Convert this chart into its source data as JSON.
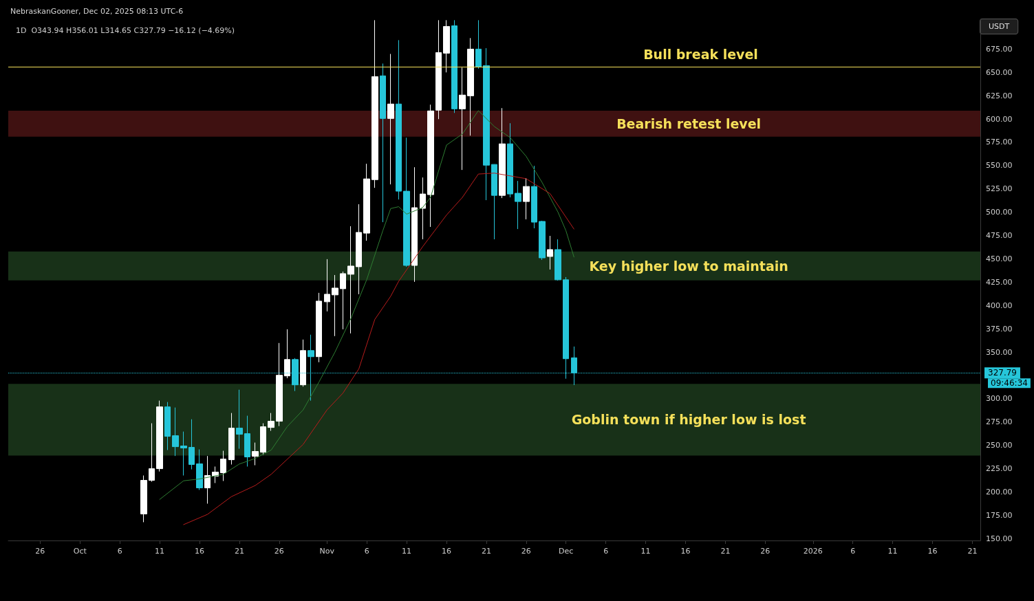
{
  "chart_data": {
    "type": "candlestick",
    "title": "1D  O343.94 H356.01 L314.65 C327.79 −16.12 (−4.69%)",
    "subtitle": "NebraskanGooner, Dec 02, 2025 08:13 UTC-6",
    "ylabel": "USDT",
    "x": [
      "2025-10-09",
      "2025-10-10",
      "2025-10-11",
      "2025-10-12",
      "2025-10-13",
      "2025-10-14",
      "2025-10-15",
      "2025-10-16",
      "2025-10-17",
      "2025-10-18",
      "2025-10-19",
      "2025-10-20",
      "2025-10-21",
      "2025-10-22",
      "2025-10-23",
      "2025-10-24",
      "2025-10-25",
      "2025-10-26",
      "2025-10-27",
      "2025-10-28",
      "2025-10-29",
      "2025-10-30",
      "2025-10-31",
      "2025-11-01",
      "2025-11-02",
      "2025-11-03",
      "2025-11-04",
      "2025-11-05",
      "2025-11-06",
      "2025-11-07",
      "2025-11-08",
      "2025-11-09",
      "2025-11-10",
      "2025-11-11",
      "2025-11-12",
      "2025-11-13",
      "2025-11-14",
      "2025-11-15",
      "2025-11-16",
      "2025-11-17",
      "2025-11-18",
      "2025-11-19",
      "2025-11-20",
      "2025-11-21",
      "2025-11-22",
      "2025-11-23",
      "2025-11-24",
      "2025-11-25",
      "2025-11-26",
      "2025-11-27",
      "2025-11-28",
      "2025-11-29",
      "2025-11-30",
      "2025-12-01",
      "2025-12-02"
    ],
    "ohlc": [
      [
        176.5,
        217.7,
        167.6,
        212.5
      ],
      [
        212.5,
        273.7,
        211,
        225.0
      ],
      [
        225.0,
        298,
        222,
        291.3
      ],
      [
        291.3,
        296.5,
        245,
        259.7
      ],
      [
        260.4,
        290.6,
        238.6,
        248.6
      ],
      [
        249.4,
        264.8,
        217.7,
        247.2
      ],
      [
        247.9,
        278,
        224.3,
        229.5
      ],
      [
        230.2,
        245.7,
        202.2,
        204.4
      ],
      [
        204.4,
        238.6,
        187.5,
        217.7
      ],
      [
        217,
        227.3,
        209.6,
        221.4
      ],
      [
        220.6,
        244.2,
        211.8,
        235.4
      ],
      [
        234.6,
        284.7,
        229.5,
        268.5
      ],
      [
        268.5,
        309.7,
        246.4,
        261.9
      ],
      [
        262.6,
        281.8,
        227.3,
        237.6
      ],
      [
        238.3,
        253,
        228.7,
        243.5
      ],
      [
        242.7,
        273.7,
        239.8,
        270
      ],
      [
        269.2,
        284.7,
        265.6,
        275.9
      ],
      [
        275.9,
        359.8,
        270.7,
        325.2
      ],
      [
        324.5,
        374.5,
        322,
        342.1
      ],
      [
        342.1,
        343.6,
        308.3,
        314.9
      ],
      [
        314.9,
        363.5,
        313,
        351.7
      ],
      [
        351.7,
        368.7,
        298,
        345.1
      ],
      [
        345.1,
        413.6,
        339.2,
        404.7
      ],
      [
        404,
        449.7,
        393.7,
        412.1
      ],
      [
        411.4,
        432.7,
        367.2,
        418.7
      ],
      [
        418,
        436.4,
        374.5,
        434.2
      ],
      [
        433.5,
        485,
        370.1,
        442.3
      ],
      [
        441.6,
        508.6,
        412.1,
        478.4
      ],
      [
        477.6,
        552,
        469.5,
        535.8
      ],
      [
        535,
        706,
        526.2,
        645.5
      ],
      [
        646.3,
        659.5,
        489.4,
        600.6
      ],
      [
        600.6,
        669.8,
        529.9,
        616.1
      ],
      [
        616.1,
        684.6,
        513.7,
        522.6
      ],
      [
        522.6,
        580,
        441.6,
        443
      ],
      [
        443,
        548.3,
        425.4,
        504.9
      ],
      [
        504.2,
        537.3,
        471,
        519.6
      ],
      [
        518.9,
        615.4,
        484.3,
        608.7
      ],
      [
        609.5,
        706,
        599.9,
        671.3
      ],
      [
        670.6,
        706,
        650,
        699.3
      ],
      [
        700,
        706,
        606.5,
        610.9
      ],
      [
        610.9,
        655.1,
        545.4,
        625.7
      ],
      [
        624.9,
        686.8,
        582.2,
        675
      ],
      [
        675,
        706,
        654,
        655.9
      ],
      [
        657.3,
        676,
        513,
        550.5
      ],
      [
        551.3,
        551.5,
        471,
        518.1
      ],
      [
        518.1,
        611.7,
        515.2,
        573.4
      ],
      [
        573.4,
        595.5,
        516,
        519.6
      ],
      [
        520.4,
        533.6,
        482,
        511.5
      ],
      [
        511.5,
        536.6,
        492.4,
        527.7
      ],
      [
        527.7,
        549.8,
        482.8,
        489.4
      ],
      [
        490.2,
        490.9,
        448.9,
        451.1
      ],
      [
        452.6,
        474.7,
        438.6,
        460
      ],
      [
        460,
        471,
        426.8,
        427.6
      ],
      [
        427.6,
        430.5,
        321.5,
        342.9
      ],
      [
        343.94,
        356.01,
        314.65,
        327.79
      ]
    ],
    "colors": [
      "#ffffff",
      "#ffffff",
      "#ffffff",
      "#26c6da",
      "#26c6da",
      "#26c6da",
      "#26c6da",
      "#26c6da",
      "#ffffff",
      "#ffffff",
      "#ffffff",
      "#ffffff",
      "#26c6da",
      "#26c6da",
      "#ffffff",
      "#ffffff",
      "#ffffff",
      "#ffffff",
      "#ffffff",
      "#26c6da",
      "#ffffff",
      "#26c6da",
      "#ffffff",
      "#ffffff",
      "#ffffff",
      "#ffffff",
      "#ffffff",
      "#ffffff",
      "#ffffff",
      "#ffffff",
      "#26c6da",
      "#ffffff",
      "#26c6da",
      "#26c6da",
      "#ffffff",
      "#ffffff",
      "#ffffff",
      "#ffffff",
      "#ffffff",
      "#26c6da",
      "#ffffff",
      "#ffffff",
      "#26c6da",
      "#26c6da",
      "#26c6da",
      "#ffffff",
      "#26c6da",
      "#26c6da",
      "#ffffff",
      "#26c6da",
      "#26c6da",
      "#ffffff",
      "#26c6da",
      "#26c6da",
      "#26c6da"
    ],
    "series": [
      {
        "type": "line",
        "color": "#2e7d32",
        "x": [
          "2025-10-11",
          "2025-10-14",
          "2025-10-16",
          "2025-10-19",
          "2025-10-21",
          "2025-10-23",
          "2025-10-25",
          "2025-10-27",
          "2025-10-29",
          "2025-10-31",
          "2025-11-02",
          "2025-11-04",
          "2025-11-06",
          "2025-11-08",
          "2025-11-09",
          "2025-11-10",
          "2025-11-11",
          "2025-11-13",
          "2025-11-14",
          "2025-11-16",
          "2025-11-18",
          "2025-11-20",
          "2025-11-22",
          "2025-11-24",
          "2025-11-26",
          "2025-11-28",
          "2025-11-30",
          "2025-12-01",
          "2025-12-02"
        ],
        "values": [
          192,
          212,
          214,
          219,
          230,
          236,
          245,
          270,
          288,
          318,
          350,
          386,
          428,
          480,
          504,
          506,
          498,
          505,
          516,
          572,
          584,
          609,
          592,
          580,
          560,
          532,
          500,
          480,
          452
        ]
      },
      {
        "type": "line",
        "color": "#b71c1c",
        "x": [
          "2025-10-14",
          "2025-10-17",
          "2025-10-20",
          "2025-10-23",
          "2025-10-25",
          "2025-10-29",
          "2025-11-01",
          "2025-11-03",
          "2025-11-05",
          "2025-11-07",
          "2025-11-09",
          "2025-11-10",
          "2025-11-13",
          "2025-11-16",
          "2025-11-18",
          "2025-11-20",
          "2025-11-22",
          "2025-11-26",
          "2025-11-29",
          "2025-12-02"
        ],
        "values": [
          165,
          176,
          195,
          207,
          219,
          251,
          288,
          306,
          332,
          385,
          410,
          426,
          463,
          497,
          516,
          541,
          542,
          536,
          520,
          482
        ]
      }
    ],
    "xlim": [
      "2025-09-22",
      "2026-01-22"
    ],
    "xticks": [
      {
        "value": "2025-09-26",
        "label": "26"
      },
      {
        "value": "2025-10-01",
        "label": "Oct"
      },
      {
        "value": "2025-10-06",
        "label": "6"
      },
      {
        "value": "2025-10-11",
        "label": "11"
      },
      {
        "value": "2025-10-16",
        "label": "16"
      },
      {
        "value": "2025-10-21",
        "label": "21"
      },
      {
        "value": "2025-10-26",
        "label": "26"
      },
      {
        "value": "2025-11-01",
        "label": "Nov"
      },
      {
        "value": "2025-11-06",
        "label": "6"
      },
      {
        "value": "2025-11-11",
        "label": "11"
      },
      {
        "value": "2025-11-16",
        "label": "16"
      },
      {
        "value": "2025-11-21",
        "label": "21"
      },
      {
        "value": "2025-11-26",
        "label": "26"
      },
      {
        "value": "2025-12-01",
        "label": "Dec"
      },
      {
        "value": "2025-12-06",
        "label": "6"
      },
      {
        "value": "2025-12-11",
        "label": "11"
      },
      {
        "value": "2025-12-16",
        "label": "16"
      },
      {
        "value": "2025-12-21",
        "label": "21"
      },
      {
        "value": "2025-12-26",
        "label": "26"
      },
      {
        "value": "2026-01-01",
        "label": "2026"
      },
      {
        "value": "2026-01-06",
        "label": "6"
      },
      {
        "value": "2026-01-11",
        "label": "11"
      },
      {
        "value": "2026-01-16",
        "label": "16"
      },
      {
        "value": "2026-01-21",
        "label": "21"
      }
    ],
    "ylim": [
      148,
      707
    ],
    "yticks": [
      {
        "value": 150,
        "label": "150.00"
      },
      {
        "value": 175,
        "label": "175.00"
      },
      {
        "value": 200,
        "label": "200.00"
      },
      {
        "value": 225,
        "label": "225.00"
      },
      {
        "value": 250,
        "label": "250.00"
      },
      {
        "value": 275,
        "label": "275.00"
      },
      {
        "value": 300,
        "label": "300.00"
      },
      {
        "value": 350,
        "label": "350.00"
      },
      {
        "value": 375,
        "label": "375.00"
      },
      {
        "value": 400,
        "label": "400.00"
      },
      {
        "value": 425,
        "label": "425.00"
      },
      {
        "value": 450,
        "label": "450.00"
      },
      {
        "value": 475,
        "label": "475.00"
      },
      {
        "value": 500,
        "label": "500.00"
      },
      {
        "value": 525,
        "label": "525.00"
      },
      {
        "value": 550,
        "label": "550.00"
      },
      {
        "value": 575,
        "label": "575.00"
      },
      {
        "value": 600,
        "label": "600.00"
      },
      {
        "value": 625,
        "label": "625.00"
      },
      {
        "value": 650,
        "label": "650.00"
      },
      {
        "value": 675,
        "label": "675.00"
      }
    ],
    "ref_lines": [
      {
        "axis": "y",
        "value": 656,
        "label": "Bull break level",
        "color": "#f5e05a",
        "line_style": "solid"
      },
      {
        "axis": "y",
        "value": 327.79,
        "label": "327.79",
        "color": "#26c6da",
        "line_style": "dotted"
      }
    ],
    "bands": [
      {
        "axis": "y",
        "from": 581,
        "to": 609,
        "label": "Bearish retest level",
        "color": "#4a1414"
      },
      {
        "axis": "y",
        "from": 427,
        "to": 458,
        "label": "Key higher low to maintain",
        "color": "#1c3a1c"
      },
      {
        "axis": "y",
        "from": 239,
        "to": 316,
        "label": "Goblin town if higher low is lost",
        "color": "#1c3a1c"
      }
    ],
    "annotations": [
      "09:46:34"
    ]
  }
}
